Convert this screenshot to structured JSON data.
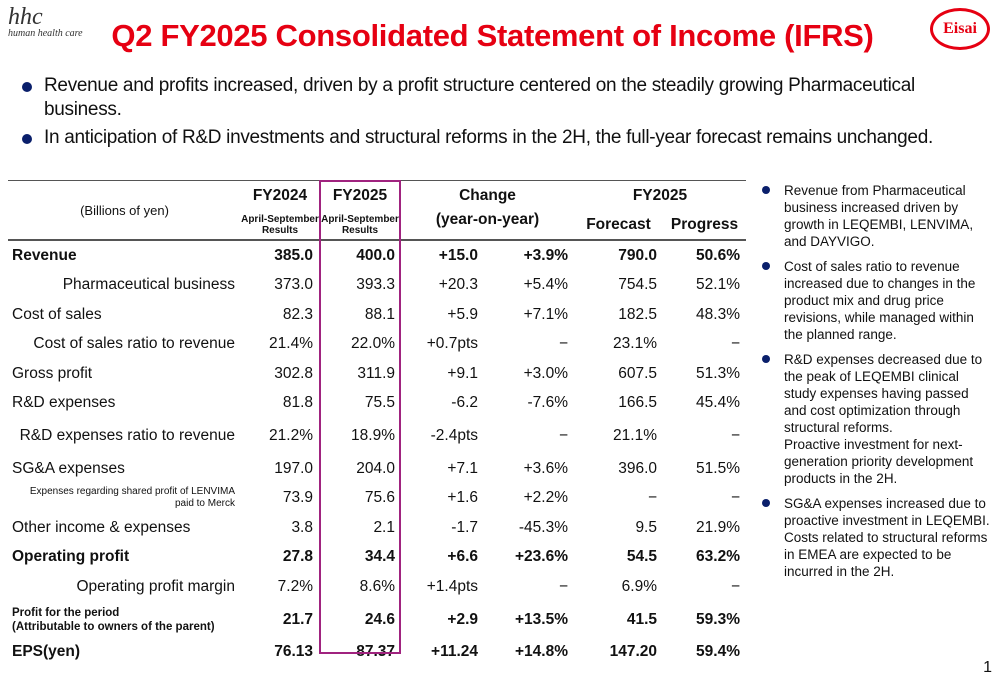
{
  "header": {
    "logo_text": "hhc",
    "logo_sub": "human health care",
    "title": "Q2 FY2025 Consolidated Statement of Income (IFRS)",
    "brand": "Eisai"
  },
  "bullets": [
    "Revenue and profits increased, driven by a profit structure centered on the steadily growing Pharmaceutical business.",
    "In anticipation of R&D investments and structural reforms in the 2H, the full-year forecast remains unchanged."
  ],
  "table": {
    "unit": "(Billions of yen)",
    "fy2024": "FY2024",
    "fy2024_sub": "April-September\nResults",
    "fy2025": "FY2025",
    "fy2025_sub": "April-September\nResults",
    "change": "Change",
    "change_sub": "(year-on-year)",
    "forecast_group": "FY2025",
    "forecast": "Forecast",
    "progress": "Progress",
    "rows": [
      [
        "Revenue",
        "385.0",
        "400.0",
        "+15.0",
        "+3.9%",
        "790.0",
        "50.6%"
      ],
      [
        "Pharmaceutical business",
        "373.0",
        "393.3",
        "+20.3",
        "+5.4%",
        "754.5",
        "52.1%"
      ],
      [
        "Cost of sales",
        "82.3",
        "88.1",
        "+5.9",
        "+7.1%",
        "182.5",
        "48.3%"
      ],
      [
        "Cost of sales ratio to revenue",
        "21.4%",
        "22.0%",
        "+0.7pts",
        "−",
        "23.1%",
        "−"
      ],
      [
        "Gross profit",
        "302.8",
        "311.9",
        "+9.1",
        "+3.0%",
        "607.5",
        "51.3%"
      ],
      [
        "R&D expenses",
        "81.8",
        "75.5",
        "-6.2",
        "-7.6%",
        "166.5",
        "45.4%"
      ],
      [
        "R&D expenses ratio to revenue",
        "21.2%",
        "18.9%",
        "-2.4pts",
        "−",
        "21.1%",
        "−"
      ],
      [
        "SG&A expenses",
        "197.0",
        "204.0",
        "+7.1",
        "+3.6%",
        "396.0",
        "51.5%"
      ],
      [
        "Expenses regarding shared profit of LENVIMA\npaid to Merck",
        "73.9",
        "75.6",
        "+1.6",
        "+2.2%",
        "−",
        "−"
      ],
      [
        "Other income & expenses",
        "3.8",
        "2.1",
        "-1.7",
        "-45.3%",
        "9.5",
        "21.9%"
      ],
      [
        "Operating profit",
        "27.8",
        "34.4",
        "+6.6",
        "+23.6%",
        "54.5",
        "63.2%"
      ],
      [
        "Operating profit margin",
        "7.2%",
        "8.6%",
        "+1.4pts",
        "−",
        "6.9%",
        "−"
      ],
      [
        "Profit for the period\n(Attributable to owners of the parent)",
        "21.7",
        "24.6",
        "+2.9",
        "+13.5%",
        "41.5",
        "59.3%"
      ],
      [
        "EPS(yen)",
        "76.13",
        "87.37",
        "+11.24",
        "+14.8%",
        "147.20",
        "59.4%"
      ]
    ]
  },
  "notes": [
    "Revenue from Pharmaceutical business increased driven by growth in LEQEMBI, LENVIMA, and DAYVIGO.",
    "Cost of sales ratio to revenue increased due to changes in the product mix and drug price revisions, while managed within the planned range.",
    "R&D expenses decreased due to the peak of LEQEMBI clinical study expenses having passed and cost optimization through structural reforms.\nProactive investment for next-generation priority development products in the 2H.",
    "SG&A expenses increased due to proactive investment in LEQEMBI.\nCosts related to structural reforms in EMEA are expected to be incurred in the 2H."
  ],
  "page_number": "1"
}
